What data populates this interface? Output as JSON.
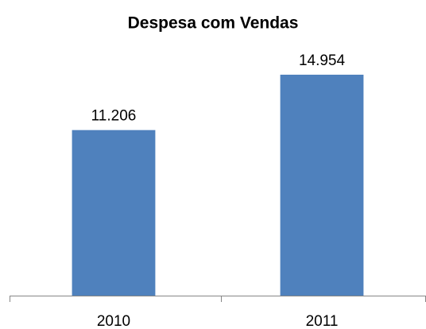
{
  "chart_data": {
    "type": "bar",
    "title": "Despesa com Vendas",
    "categories": [
      "2010",
      "2011"
    ],
    "values": [
      11206,
      14954
    ],
    "value_labels": [
      "11.206",
      "14.954"
    ],
    "color": "#4f81bd"
  }
}
